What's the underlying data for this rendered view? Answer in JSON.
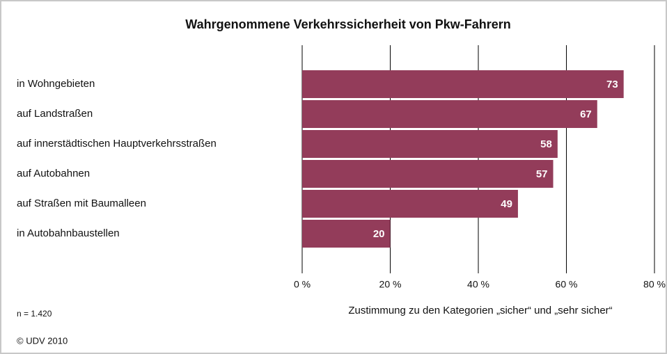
{
  "chart_data": {
    "type": "bar",
    "orientation": "horizontal",
    "title": "Wahrgenommene Verkehrssicherheit von Pkw-Fahrern",
    "categories": [
      "in Wohngebieten",
      "auf Landstraßen",
      "auf innerstädtischen Hauptverkehrsstraßen",
      "auf Autobahnen",
      "auf Straßen mit Baumalleen",
      "in Autobahnbaustellen"
    ],
    "values": [
      73,
      67,
      58,
      57,
      49,
      20
    ],
    "color": "#933c5a",
    "xlim": [
      0,
      80
    ],
    "xticks": [
      {
        "value": 0,
        "label": "0 %"
      },
      {
        "value": 20,
        "label": "20 %"
      },
      {
        "value": 40,
        "label": "40 %"
      },
      {
        "value": 60,
        "label": "60 %"
      },
      {
        "value": 80,
        "label": "80 %"
      }
    ],
    "xlabel": "Zustimmung zu den Kategorien „sicher“ und „sehr sicher“",
    "grid": true,
    "annotations": [
      "n = 1.420",
      "© UDV 2010"
    ]
  }
}
